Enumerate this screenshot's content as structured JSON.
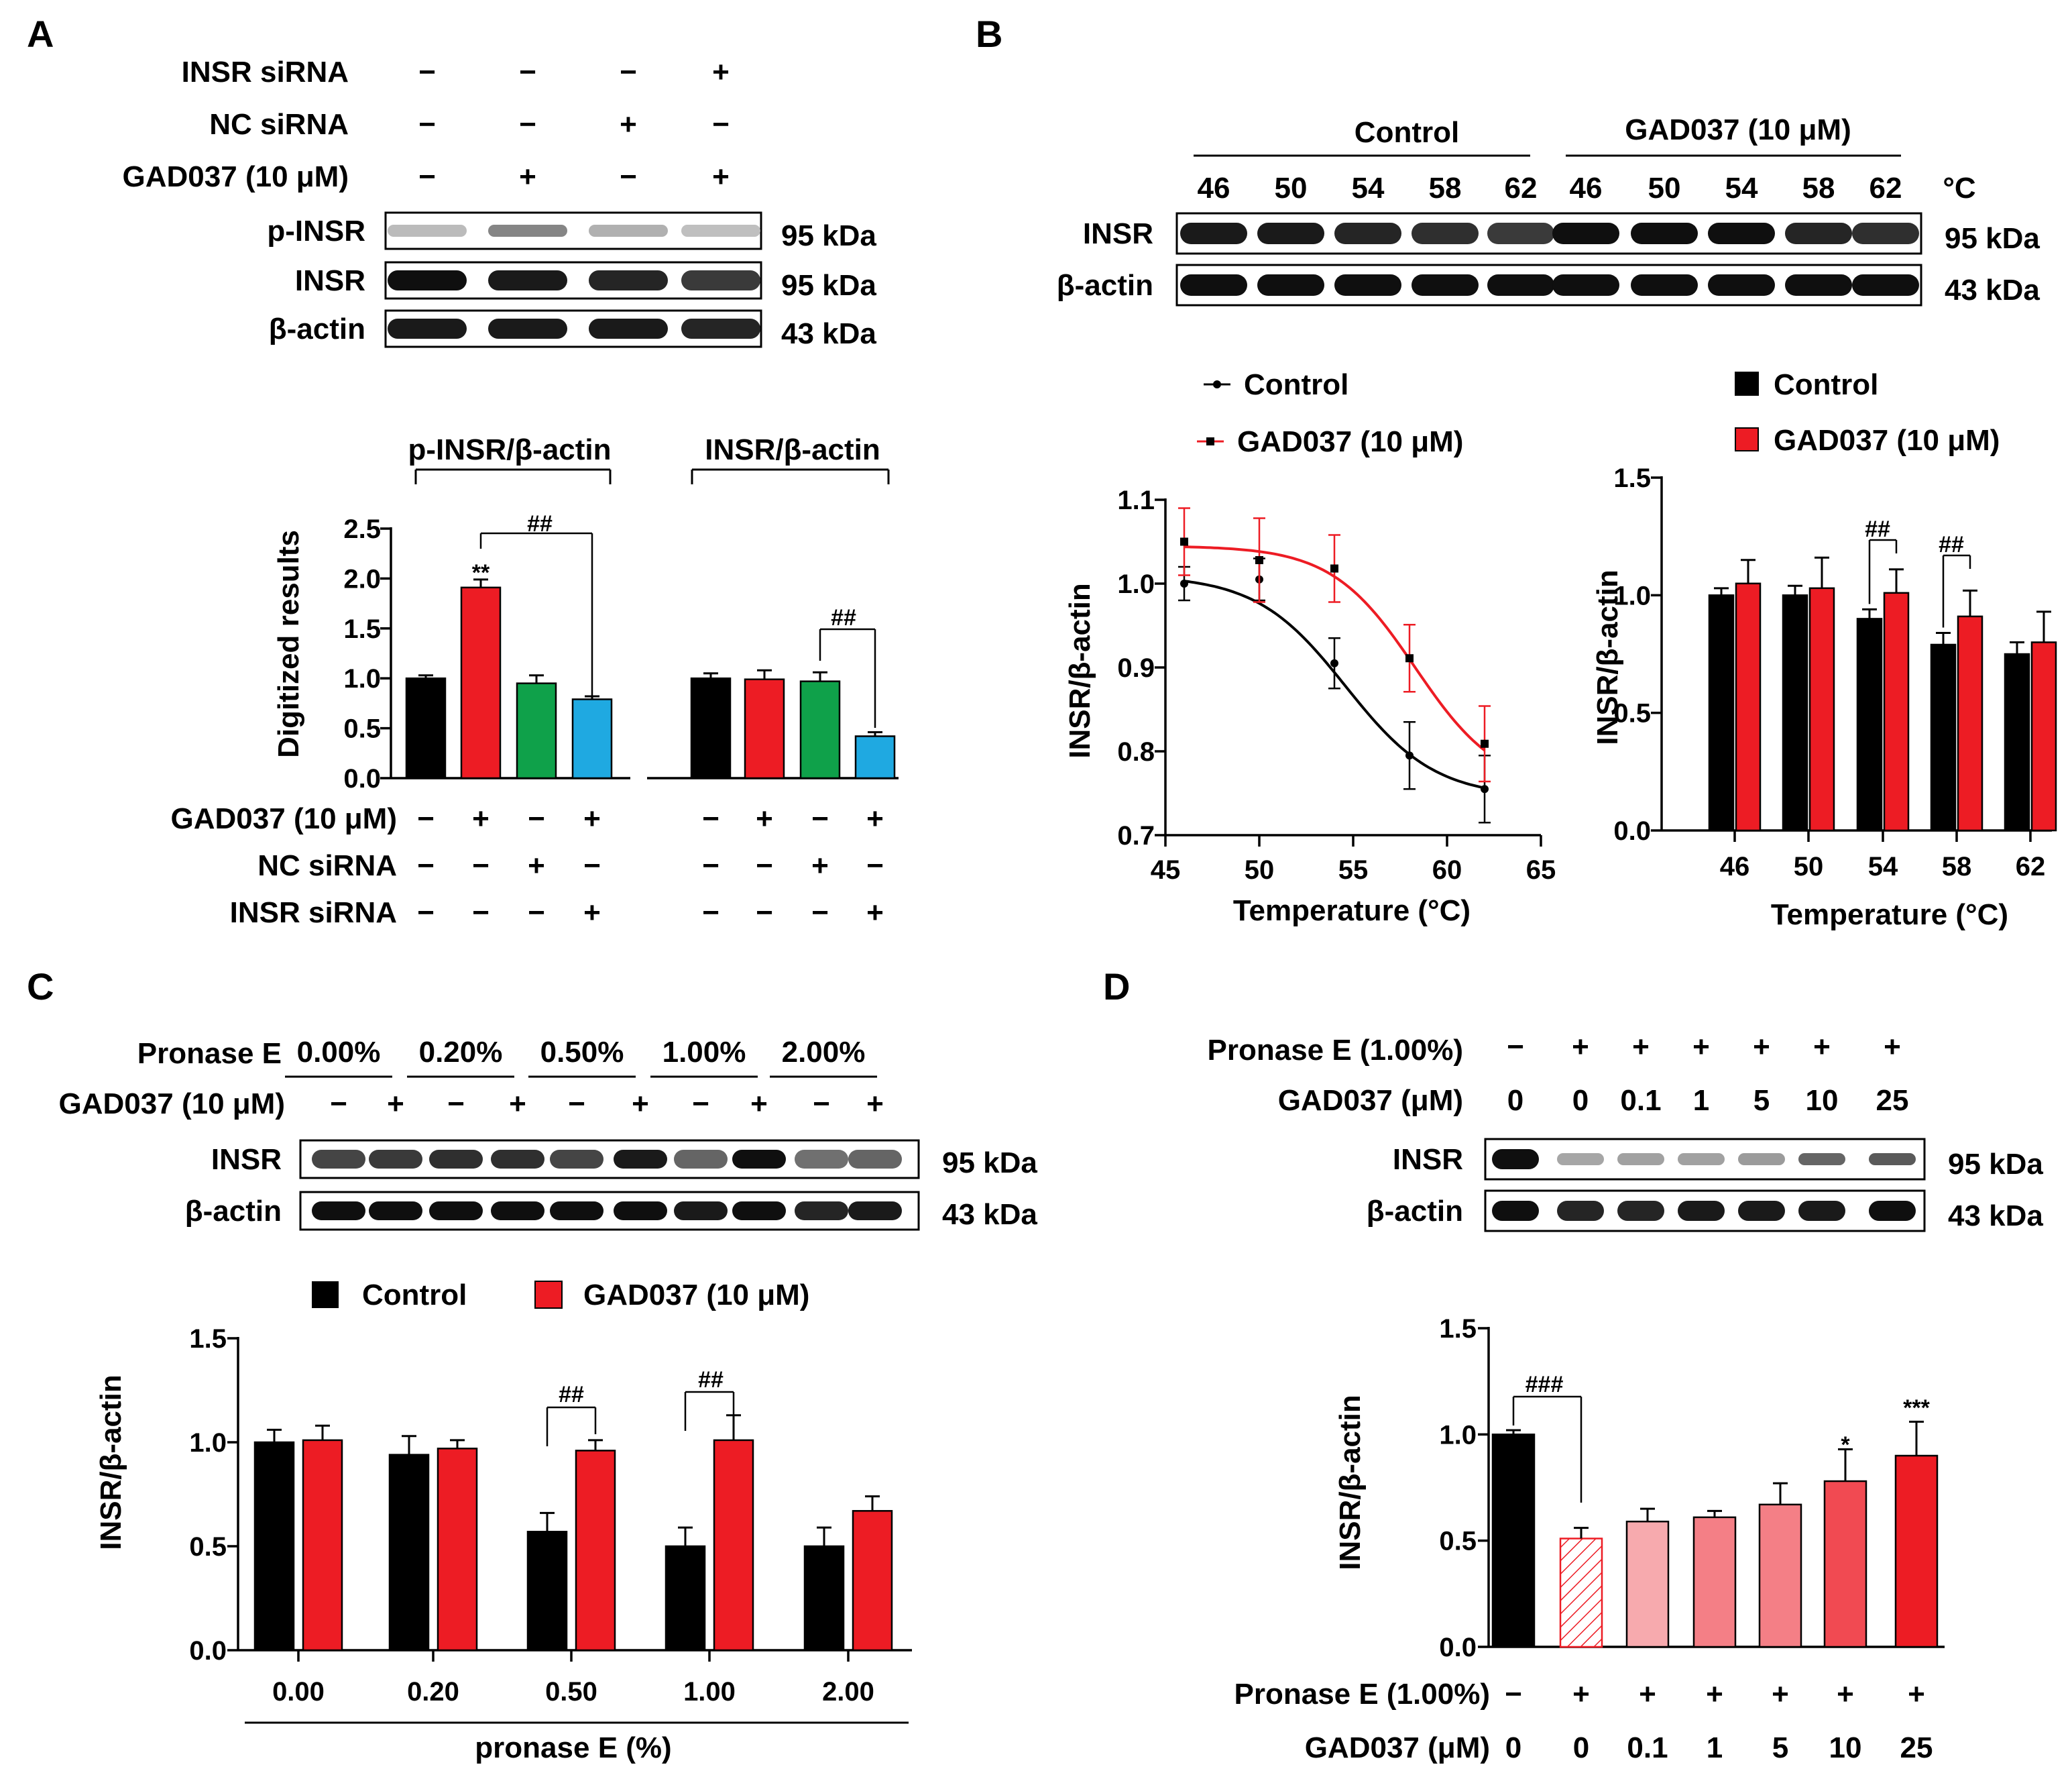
{
  "colors": {
    "control": "#000000",
    "gad037": "#ed1c24",
    "green": "#0fa14a",
    "blue": "#1fa9e1",
    "pink_light": "#f7aaae",
    "pink_mid": "#f47f86",
    "red_mid": "#f14a52"
  },
  "panels": {
    "A": {
      "letter": "A",
      "blot": {
        "conditions": [
          {
            "label": "INSR siRNA",
            "signs": [
              "−",
              "−",
              "−",
              "+"
            ]
          },
          {
            "label": "NC siRNA",
            "signs": [
              "−",
              "−",
              "+",
              "−"
            ]
          },
          {
            "label": "GAD037 (10 μM)",
            "signs": [
              "−",
              "+",
              "−",
              "+"
            ]
          }
        ],
        "bands": [
          {
            "label": "p-INSR",
            "kda": "95 kDa"
          },
          {
            "label": "INSR",
            "kda": "95 kDa"
          },
          {
            "label": "β-actin",
            "kda": "43 kDa"
          }
        ]
      },
      "groups": [
        "p-INSR/β-actin",
        "INSR/β-actin"
      ],
      "ylabel": "Digitized results",
      "yticks": [
        "0.0",
        "0.5",
        "1.0",
        "1.5",
        "2.0",
        "2.5"
      ],
      "conditions_below": [
        {
          "label": "GAD037 (10 μM)",
          "signs": [
            "−",
            "+",
            "−",
            "+",
            "−",
            "+",
            "−",
            "+"
          ]
        },
        {
          "label": "NC siRNA",
          "signs": [
            "−",
            "−",
            "+",
            "−",
            "−",
            "−",
            "+",
            "−"
          ]
        },
        {
          "label": "INSR siRNA",
          "signs": [
            "−",
            "−",
            "−",
            "+",
            "−",
            "−",
            "−",
            "+"
          ]
        }
      ],
      "annotations": {
        "star": "**",
        "hash1": "##",
        "hash2": "##"
      }
    },
    "B": {
      "letter": "B",
      "blot": {
        "group_labels": [
          "Control",
          "GAD037 (10 μM)"
        ],
        "temps": [
          "46",
          "50",
          "54",
          "58",
          "62",
          "46",
          "50",
          "54",
          "58",
          "62"
        ],
        "unit": "°C",
        "bands": [
          {
            "label": "INSR",
            "kda": "95 kDa"
          },
          {
            "label": "β-actin",
            "kda": "43 kDa"
          }
        ]
      },
      "line_legend": [
        "Control",
        "GAD037 (10 μM)"
      ],
      "bar_legend": [
        "Control",
        "GAD037 (10 μM)"
      ],
      "line_ylabel": "INSR/β-actin",
      "line_xlabel": "Temperature (°C)",
      "line_xticks": [
        "45",
        "50",
        "55",
        "60",
        "65"
      ],
      "line_yticks": [
        "0.7",
        "0.8",
        "0.9",
        "1.0",
        "1.1"
      ],
      "bar_ylabel": "INSR/β-actin",
      "bar_xlabel": "Temperature (°C)",
      "bar_xticks": [
        "46",
        "50",
        "54",
        "58",
        "62"
      ],
      "bar_yticks": [
        "0.0",
        "0.5",
        "1.0",
        "1.5"
      ],
      "annotations": {
        "h54": "##",
        "h58": "##"
      }
    },
    "C": {
      "letter": "C",
      "blot": {
        "row1_label": "Pronase E",
        "concentrations": [
          "0.00%",
          "0.20%",
          "0.50%",
          "1.00%",
          "2.00%"
        ],
        "row2_label": "GAD037 (10 μM)",
        "signs": [
          "−",
          "+",
          "−",
          "+",
          "−",
          "+",
          "−",
          "+",
          "−",
          "+"
        ],
        "bands": [
          {
            "label": "INSR",
            "kda": "95 kDa"
          },
          {
            "label": "β-actin",
            "kda": "43 kDa"
          }
        ]
      },
      "legend": [
        "Control",
        "GAD037 (10 μM)"
      ],
      "ylabel": "INSR/β-actin",
      "xlabel": "pronase E (%)",
      "xticks": [
        "0.00",
        "0.20",
        "0.50",
        "1.00",
        "2.00"
      ],
      "yticks": [
        "0.0",
        "0.5",
        "1.0",
        "1.5"
      ],
      "annotations": {
        "h050": "##",
        "h100": "##"
      }
    },
    "D": {
      "letter": "D",
      "blot": {
        "row1_label": "Pronase E (1.00%)",
        "row1_signs": [
          "−",
          "+",
          "+",
          "+",
          "+",
          "+",
          "+"
        ],
        "row2_label": "GAD037 (μM)",
        "row2_values": [
          "0",
          "0",
          "0.1",
          "1",
          "5",
          "10",
          "25"
        ],
        "bands": [
          {
            "label": "INSR",
            "kda": "95 kDa"
          },
          {
            "label": "β-actin",
            "kda": "43 kDa"
          }
        ]
      },
      "ylabel": "INSR/β-actin",
      "yticks": [
        "0.0",
        "0.5",
        "1.0",
        "1.5"
      ],
      "row1_label": "Pronase E (1.00%)",
      "row1_signs": [
        "−",
        "+",
        "+",
        "+",
        "+",
        "+",
        "+"
      ],
      "row2_label": "GAD037 (μM)",
      "row2_values": [
        "0",
        "0",
        "0.1",
        "1",
        "5",
        "10",
        "25"
      ],
      "annotations": {
        "hash": "###",
        "s10": "*",
        "s25": "***"
      }
    }
  },
  "chart_data": [
    {
      "panel": "A",
      "type": "bar",
      "categories": [
        "p-INSR/β-actin",
        "INSR/β-actin"
      ],
      "series": [
        {
          "values": [
            1.0,
            1.0
          ],
          "errors": [
            0.03,
            0.05
          ]
        },
        {
          "values": [
            1.91,
            0.99
          ],
          "errors": [
            0.08,
            0.09
          ]
        },
        {
          "values": [
            0.95,
            0.97
          ],
          "errors": [
            0.08,
            0.09
          ]
        },
        {
          "values": [
            0.79,
            0.42
          ],
          "errors": [
            0.03,
            0.04
          ]
        }
      ],
      "ylabel": "Digitized results",
      "ylim": [
        0,
        2.5
      ]
    },
    {
      "panel": "B",
      "type": "line",
      "x": [
        46,
        50,
        54,
        58,
        62
      ],
      "series": [
        {
          "name": "Control",
          "values": [
            1.0,
            1.005,
            0.905,
            0.795,
            0.755
          ],
          "errors": [
            0.02,
            0.025,
            0.03,
            0.04,
            0.04
          ]
        },
        {
          "name": "GAD037 (10 μM)",
          "values": [
            1.05,
            1.028,
            1.018,
            0.911,
            0.809
          ],
          "errors": [
            0.04,
            0.05,
            0.04,
            0.04,
            0.045
          ]
        }
      ],
      "xlabel": "Temperature (°C)",
      "ylabel": "INSR/β-actin",
      "xlim": [
        45,
        65
      ],
      "ylim": [
        0.7,
        1.1
      ]
    },
    {
      "panel": "B",
      "type": "bar",
      "categories": [
        "46",
        "50",
        "54",
        "58",
        "62"
      ],
      "series": [
        {
          "name": "Control",
          "values": [
            1.0,
            1.0,
            0.9,
            0.79,
            0.75
          ],
          "errors": [
            0.03,
            0.04,
            0.04,
            0.05,
            0.05
          ]
        },
        {
          "name": "GAD037 (10 μM)",
          "values": [
            1.05,
            1.03,
            1.01,
            0.91,
            0.8
          ],
          "errors": [
            0.1,
            0.13,
            0.1,
            0.11,
            0.13
          ]
        }
      ],
      "xlabel": "Temperature (°C)",
      "ylabel": "INSR/β-actin",
      "ylim": [
        0,
        1.5
      ]
    },
    {
      "panel": "C",
      "type": "bar",
      "categories": [
        "0.00",
        "0.20",
        "0.50",
        "1.00",
        "2.00"
      ],
      "series": [
        {
          "name": "Control",
          "values": [
            1.0,
            0.94,
            0.57,
            0.5,
            0.5
          ],
          "errors": [
            0.06,
            0.09,
            0.09,
            0.09,
            0.09
          ]
        },
        {
          "name": "GAD037 (10 μM)",
          "values": [
            1.01,
            0.97,
            0.96,
            1.01,
            0.67
          ],
          "errors": [
            0.07,
            0.04,
            0.05,
            0.12,
            0.07
          ]
        }
      ],
      "xlabel": "pronase E (%)",
      "ylabel": "INSR/β-actin",
      "ylim": [
        0,
        1.5
      ]
    },
    {
      "panel": "D",
      "type": "bar",
      "categories": [
        "0",
        "0",
        "0.1",
        "1",
        "5",
        "10",
        "25"
      ],
      "values": [
        1.0,
        0.51,
        0.59,
        0.61,
        0.67,
        0.78,
        0.9
      ],
      "errors": [
        0.02,
        0.05,
        0.06,
        0.03,
        0.1,
        0.15,
        0.16
      ],
      "ylabel": "INSR/β-actin",
      "ylim": [
        0,
        1.5
      ]
    }
  ]
}
